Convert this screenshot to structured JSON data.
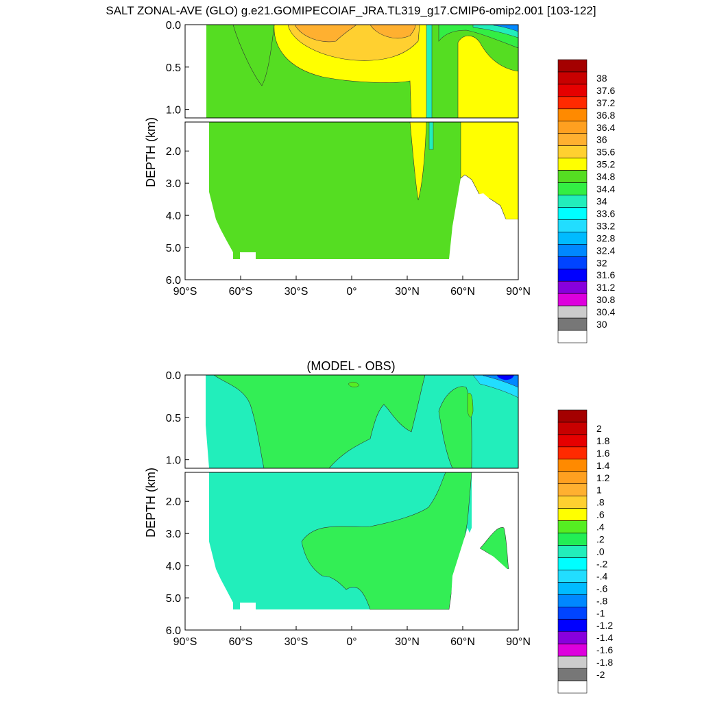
{
  "figure": {
    "title": "SALT ZONAL-AVE (GLO) g.e21.GOMIPECOIAF_JRA.TL319_g17.CMIP6-omip2.001 [103-122]"
  },
  "chart_data": [
    {
      "type": "heatmap",
      "title": "",
      "xlabel": "",
      "ylabel": "DEPTH (km)",
      "xlim": [
        -90,
        90
      ],
      "ylim": [
        0,
        6.0
      ],
      "y_break": true,
      "x_ticks": [
        "90°S",
        "60°S",
        "30°S",
        "0°",
        "30°N",
        "60°N",
        "90°N"
      ],
      "y_ticks_upper": [
        "0.0",
        "0.5",
        "1.0"
      ],
      "y_ticks_lower": [
        "2.0",
        "3.0",
        "4.0",
        "5.0",
        "6.0"
      ],
      "colorbar": {
        "labels": [
          "38",
          "37.6",
          "37.2",
          "36.8",
          "36.4",
          "36",
          "35.6",
          "35.2",
          "34.8",
          "34.4",
          "34",
          "33.6",
          "33.2",
          "32.8",
          "32.4",
          "32",
          "31.6",
          "31.2",
          "30.8",
          "30.4",
          "30"
        ],
        "colors": [
          "#a40000",
          "#c80000",
          "#e60000",
          "#ff2a00",
          "#ff8a00",
          "#ffa020",
          "#ffb030",
          "#ffd030",
          "#ffff00",
          "#55dd22",
          "#33ee44",
          "#22eebb",
          "#00ffff",
          "#22ddff",
          "#00bbff",
          "#0088ff",
          "#0044ff",
          "#0000ff",
          "#8800dd",
          "#dd00dd",
          "#cccccc",
          "#777777",
          "#ffffff"
        ]
      },
      "dominant_values": {
        "deep_ocean": 34.8,
        "north_atlantic": 35.2,
        "subtropical_surface_max": 36.4
      }
    },
    {
      "type": "heatmap",
      "title": "(MODEL - OBS)",
      "xlabel": "",
      "ylabel": "DEPTH (km)",
      "xlim": [
        -90,
        90
      ],
      "ylim": [
        0,
        6.0
      ],
      "y_break": true,
      "x_ticks": [
        "90°S",
        "60°S",
        "30°S",
        "0°",
        "30°N",
        "60°N",
        "90°N"
      ],
      "y_ticks_upper": [
        "0.0",
        "0.5",
        "1.0"
      ],
      "y_ticks_lower": [
        "2.0",
        "3.0",
        "4.0",
        "5.0",
        "6.0"
      ],
      "colorbar": {
        "labels": [
          "2",
          "1.8",
          "1.6",
          "1.4",
          "1.2",
          "1",
          ".8",
          ".6",
          ".4",
          ".2",
          ".0",
          "-.2",
          "-.4",
          "-.6",
          "-.8",
          "-1",
          "-1.2",
          "-1.4",
          "-1.6",
          "-1.8",
          "-2"
        ],
        "colors": [
          "#a40000",
          "#c80000",
          "#e60000",
          "#ff2a00",
          "#ff8a00",
          "#ffa020",
          "#ffb030",
          "#ffd030",
          "#ffff00",
          "#55ee22",
          "#22ee55",
          "#22eebb",
          "#00ffff",
          "#22ddff",
          "#00bbff",
          "#0088ff",
          "#0044ff",
          "#0000ff",
          "#8800dd",
          "#dd00dd",
          "#cccccc",
          "#777777",
          "#ffffff"
        ]
      },
      "dominant_values": {
        "upper_ocean": 0.0,
        "deep_ocean": -0.2
      }
    }
  ]
}
